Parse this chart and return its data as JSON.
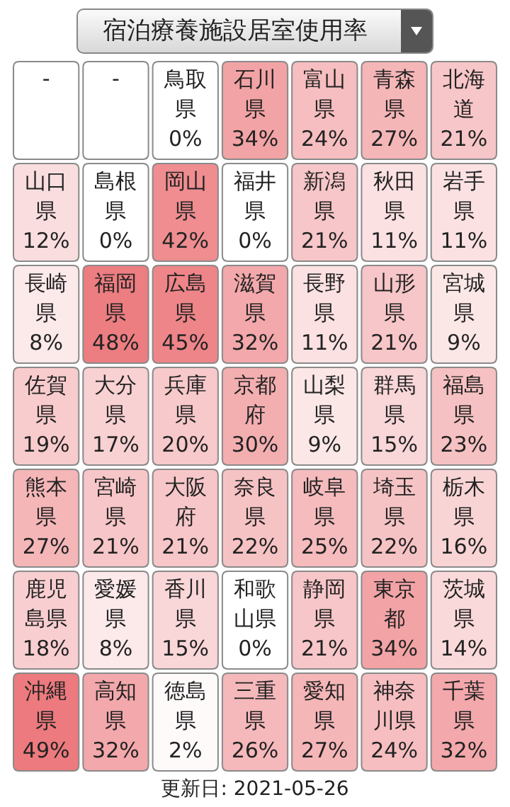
{
  "chart_data": {
    "type": "heatmap",
    "title": "宿泊療養施設居室使用率",
    "categories": [
      null,
      null,
      null,
      null,
      null,
      null,
      null
    ],
    "y_categories": [
      null,
      null,
      null,
      null,
      null,
      null,
      null
    ],
    "cells": [
      [
        null,
        null,
        0,
        34,
        24,
        27,
        21
      ],
      [
        12,
        0,
        42,
        0,
        21,
        11,
        11
      ],
      [
        8,
        48,
        45,
        32,
        11,
        21,
        9
      ],
      [
        19,
        17,
        20,
        30,
        9,
        15,
        23
      ],
      [
        27,
        21,
        21,
        22,
        25,
        22,
        16
      ],
      [
        18,
        8,
        15,
        0,
        21,
        34,
        14
      ],
      [
        49,
        32,
        2,
        26,
        27,
        24,
        32
      ]
    ],
    "cell_labels": [
      [
        "-",
        "-",
        "0%",
        "34%",
        "24%",
        "27%",
        "21%"
      ],
      [
        "12%",
        "0%",
        "42%",
        "0%",
        "21%",
        "11%",
        "11%"
      ],
      [
        "8%",
        "48%",
        "45%",
        "32%",
        "11%",
        "21%",
        "9%"
      ],
      [
        "19%",
        "17%",
        "20%",
        "30%",
        "9%",
        "15%",
        "23%"
      ],
      [
        "27%",
        "21%",
        "21%",
        "22%",
        "25%",
        "22%",
        "16%"
      ],
      [
        "18%",
        "8%",
        "15%",
        "0%",
        "21%",
        "34%",
        "14%"
      ],
      [
        "49%",
        "32%",
        "2%",
        "26%",
        "27%",
        "24%",
        "32%"
      ]
    ],
    "annotations": [
      "鳥取県",
      "石川県",
      "富山県",
      "青森県",
      "北海道",
      "山口県",
      "島根県",
      "岡山県",
      "福井県",
      "新潟県",
      "秋田県",
      "岩手県",
      "長崎県",
      "福岡県",
      "広島県",
      "滋賀県",
      "長野県",
      "山形県",
      "宮城県",
      "佐賀県",
      "大分県",
      "兵庫県",
      "京都府",
      "山梨県",
      "群馬県",
      "福島県",
      "熊本県",
      "宮崎県",
      "大阪府",
      "奈良県",
      "岐阜県",
      "埼玉県",
      "栃木県",
      "鹿児島県",
      "愛媛県",
      "香川県",
      "和歌山県",
      "静岡県",
      "東京都",
      "茨城県",
      "沖縄県",
      "高知県",
      "徳島県",
      "三重県",
      "愛知県",
      "神奈川県",
      "千葉県",
      "更新日: 2021-05-26"
    ]
  }
}
